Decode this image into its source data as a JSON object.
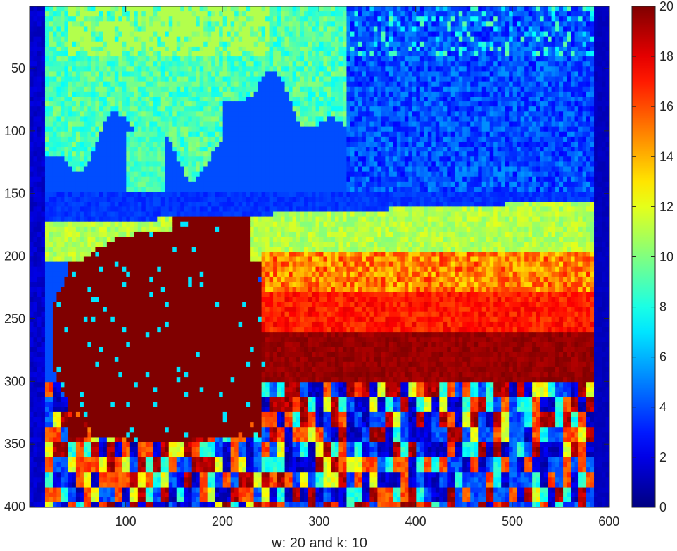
{
  "chart_data": {
    "type": "heatmap",
    "title": "",
    "xlabel": "w: 20 and k: 10",
    "ylabel": "",
    "xlim": [
      1,
      600
    ],
    "ylim": [
      1,
      400
    ],
    "y_direction": "reversed",
    "x_ticks": [
      "100",
      "200",
      "300",
      "400",
      "500",
      "600"
    ],
    "y_ticks": [
      "50",
      "100",
      "150",
      "200",
      "250",
      "300",
      "350",
      "400"
    ],
    "colorbar": {
      "colormap": "jet",
      "range": [
        0,
        20
      ],
      "ticks": [
        "0",
        "2",
        "4",
        "6",
        "8",
        "10",
        "12",
        "14",
        "16",
        "18",
        "20"
      ]
    },
    "regions": [
      {
        "name": "background",
        "value": 4
      },
      {
        "name": "upper-left light band",
        "x": [
          20,
          330
        ],
        "y": [
          1,
          100
        ],
        "value": 9
      },
      {
        "name": "top-left yellow-green patch",
        "x": [
          40,
          250
        ],
        "y": [
          1,
          40
        ],
        "value": 11
      },
      {
        "name": "left pillar",
        "x": [
          100,
          140
        ],
        "y": [
          100,
          180
        ],
        "value": 9
      },
      {
        "name": "upper mid-band",
        "x": [
          240,
          600
        ],
        "y": [
          1,
          150
        ],
        "value": 4
      },
      {
        "name": "horizon band",
        "x": [
          1,
          600
        ],
        "y": [
          165,
          205
        ],
        "value": 11
      },
      {
        "name": "orange band",
        "x": [
          240,
          600
        ],
        "y": [
          195,
          240
        ],
        "value": 15
      },
      {
        "name": "red band",
        "x": [
          240,
          600
        ],
        "y": [
          230,
          275
        ],
        "value": 17
      },
      {
        "name": "dark red band",
        "x": [
          240,
          600
        ],
        "y": [
          260,
          300
        ],
        "value": 19
      },
      {
        "name": "large dark red object",
        "x": [
          25,
          240
        ],
        "y": [
          185,
          355
        ],
        "value": 20
      },
      {
        "name": "lower textured region",
        "x": [
          20,
          600
        ],
        "y": [
          300,
          400
        ],
        "value": 10
      },
      {
        "name": "left edge strip",
        "x": [
          1,
          15
        ],
        "y": [
          1,
          400
        ],
        "value": 1
      },
      {
        "name": "right edge strip",
        "x": [
          585,
          600
        ],
        "y": [
          1,
          400
        ],
        "value": 1
      }
    ]
  }
}
